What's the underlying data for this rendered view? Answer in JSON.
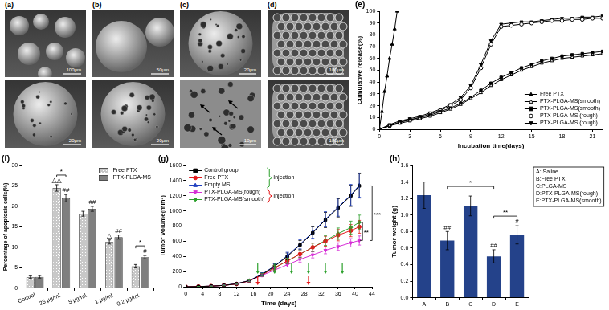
{
  "images": [
    {
      "label": "(a)",
      "scale_bars": [
        "100μm",
        "20μm"
      ]
    },
    {
      "label": "(b)",
      "scale_bars": [
        "50μm",
        "20μm"
      ]
    },
    {
      "label": "(c)",
      "scale_bars": [
        "20μm",
        "10μm"
      ]
    },
    {
      "label": "(d)",
      "scale_bars": [
        "100μm",
        "100μm"
      ]
    }
  ],
  "chart_data": [
    {
      "type": "line",
      "title": "(e)",
      "x_label": "Incubation time(days)",
      "y_label": "Cumulative release(%)",
      "xlim": [
        0,
        22
      ],
      "xticks": [
        0,
        3,
        6,
        9,
        12,
        15,
        18,
        21
      ],
      "ylim": [
        0,
        100
      ],
      "yticks": [
        0,
        10,
        20,
        30,
        40,
        50,
        60,
        70,
        80,
        90,
        100
      ],
      "grid": false,
      "legend": "lower right",
      "series": [
        {
          "name": "Free PTX",
          "color": "#000000",
          "marker": "triangle",
          "line_style": "solid",
          "x": [
            0,
            0.25,
            0.5,
            0.75,
            1,
            1.25,
            1.5,
            1.75
          ],
          "values": [
            0,
            15,
            32,
            45,
            60,
            72,
            85,
            100
          ]
        },
        {
          "name": "PTX-PLGA-MS(smooth)",
          "color": "#000000",
          "marker": "open_triangle",
          "line_style": "solid",
          "x": [
            0,
            1,
            2,
            3,
            4,
            5,
            6,
            7,
            8,
            9,
            10,
            11,
            12,
            13,
            14,
            15,
            16,
            17,
            18,
            19,
            20,
            21,
            22
          ],
          "values": [
            0,
            3,
            5,
            7,
            9,
            11,
            14,
            17,
            21,
            26,
            31,
            37,
            42,
            46,
            50,
            53,
            56,
            58,
            60,
            61,
            62,
            63,
            64
          ]
        },
        {
          "name": "PTX-PLGA-MS(smooth)",
          "color": "#000000",
          "marker": "square",
          "line_style": "solid",
          "x": [
            0,
            1,
            2,
            3,
            4,
            5,
            6,
            7,
            8,
            9,
            10,
            11,
            12,
            13,
            14,
            15,
            16,
            17,
            18,
            19,
            20,
            21,
            22
          ],
          "values": [
            0,
            3,
            6,
            8,
            10,
            12,
            15,
            18,
            22,
            27,
            33,
            39,
            44,
            48,
            52,
            55,
            58,
            60,
            62,
            63,
            64,
            65,
            66
          ]
        },
        {
          "name": "PTX-PLGA-MS (rough)",
          "color": "#000000",
          "marker": "open_circle",
          "line_style": "solid",
          "x": [
            0,
            1,
            2,
            3,
            4,
            5,
            6,
            7,
            8,
            9,
            10,
            11,
            12,
            13,
            14,
            15,
            16,
            17,
            18,
            19,
            20,
            21,
            22
          ],
          "values": [
            0,
            3,
            6,
            8,
            10,
            13,
            16,
            20,
            25,
            35,
            52,
            72,
            87,
            88,
            89,
            90,
            91,
            92,
            92,
            93,
            93,
            94,
            94
          ]
        },
        {
          "name": "PTX-PLGA-MS (rough)",
          "color": "#000000",
          "marker": "triangle_down",
          "line_style": "solid",
          "x": [
            0,
            1,
            2,
            3,
            4,
            5,
            6,
            7,
            8,
            9,
            10,
            11,
            12,
            13,
            14,
            15,
            16,
            17,
            18,
            19,
            20,
            21,
            22
          ],
          "values": [
            0,
            4,
            7,
            9,
            11,
            14,
            17,
            21,
            27,
            37,
            55,
            75,
            89,
            90,
            91,
            91,
            92,
            93,
            94,
            94,
            95,
            95,
            96
          ]
        }
      ]
    },
    {
      "type": "bar",
      "title": "(f)",
      "y_label": "Percentage of apoptosis cells(%)",
      "categories": [
        "Control",
        "25 μg/mL",
        "5 μg/mL",
        "1 μg/mL",
        "0.2 μg/mL"
      ],
      "ylim": [
        0,
        30
      ],
      "yticks": [
        0,
        5,
        10,
        15,
        20,
        25,
        30
      ],
      "grid": false,
      "legend": "upper right",
      "series": [
        {
          "name": "Free PTX",
          "color": "#c8c8c8",
          "values": [
            2.7,
            24.5,
            18.2,
            11.3,
            5.4
          ],
          "errors": [
            0.3,
            0.8,
            0.6,
            0.5,
            0.4
          ]
        },
        {
          "name": "PTX-PLGA-MS",
          "color": "#7f7f7f",
          "values": [
            2.8,
            22,
            19.4,
            12.5,
            7.6
          ],
          "errors": [
            0.3,
            0.9,
            0.6,
            0.5,
            0.4
          ]
        }
      ],
      "annotations": [
        {
          "text": "△△",
          "category": "25 μg/mL",
          "series": "Free PTX"
        },
        {
          "text": "##",
          "category": "25 μg/mL",
          "series": "PTX-PLGA-MS"
        },
        {
          "text": "##",
          "category": "5 μg/mL",
          "series": "PTX-PLGA-MS"
        },
        {
          "text": "△",
          "category": "1 μg/mL",
          "series": "Free PTX"
        },
        {
          "text": "##",
          "category": "1 μg/mL",
          "series": "PTX-PLGA-MS"
        },
        {
          "text": "#",
          "category": "0.2 μg/mL",
          "series": "PTX-PLGA-MS"
        },
        {
          "text": "*",
          "category": "25 μg/mL",
          "series": [
            "Free PTX",
            "PTX-PLGA-MS"
          ]
        },
        {
          "text": "*",
          "category": "0.2 μg/mL",
          "series": [
            "Free PTX",
            "PTX-PLGA-MS"
          ]
        }
      ]
    },
    {
      "type": "line",
      "title": "(g)",
      "x_label": "Time (days)",
      "y_label": "Tumor volume(mm³)",
      "xlim": [
        0,
        44
      ],
      "xticks": [
        0,
        4,
        8,
        12,
        16,
        20,
        24,
        28,
        32,
        36,
        40,
        44
      ],
      "ylim": [
        0,
        1600
      ],
      "yticks": [
        0,
        200,
        400,
        600,
        800,
        1000,
        1200,
        1400,
        1600
      ],
      "grid": false,
      "legend": "upper left",
      "x": [
        0,
        3,
        6,
        9,
        12,
        15,
        18,
        21,
        24,
        27,
        30,
        33,
        36,
        39,
        41
      ],
      "series": [
        {
          "name": "Control group",
          "color": "#000000",
          "marker": "square",
          "line_style": "solid",
          "values": [
            0,
            3,
            8,
            18,
            38,
            80,
            160,
            270,
            400,
            550,
            710,
            880,
            1040,
            1200,
            1330
          ],
          "errors": [
            0,
            1,
            2,
            4,
            6,
            12,
            20,
            30,
            45,
            60,
            80,
            100,
            120,
            140,
            160
          ]
        },
        {
          "name": "Free PTX",
          "color": "#e41a1c",
          "marker": "circle",
          "line_style": "solid",
          "values": [
            0,
            3,
            8,
            18,
            36,
            78,
            155,
            250,
            340,
            430,
            520,
            600,
            680,
            740,
            790
          ],
          "errors": [
            0,
            1,
            2,
            4,
            6,
            12,
            20,
            28,
            35,
            45,
            55,
            65,
            75,
            80,
            85
          ]
        },
        {
          "name": "Empty MS",
          "color": "#1f3fbf",
          "marker": "triangle",
          "line_style": "solid",
          "values": [
            0,
            3,
            8,
            19,
            40,
            82,
            165,
            275,
            410,
            560,
            720,
            890,
            1050,
            1210,
            1340
          ],
          "errors": [
            0,
            1,
            2,
            4,
            6,
            12,
            20,
            30,
            45,
            60,
            80,
            100,
            120,
            140,
            160
          ]
        },
        {
          "name": "PTX-PLGA-MS(rough)",
          "color": "#d62ed6",
          "marker": "triangle_down",
          "line_style": "solid",
          "values": [
            0,
            3,
            8,
            18,
            36,
            76,
            150,
            220,
            290,
            360,
            420,
            480,
            530,
            580,
            610
          ],
          "errors": [
            0,
            1,
            2,
            4,
            6,
            12,
            18,
            25,
            30,
            35,
            40,
            45,
            50,
            55,
            60
          ]
        },
        {
          "name": "PTX-PLGA-MS(smooth)",
          "color": "#2ca02c",
          "marker": "diamond",
          "line_style": "solid",
          "values": [
            0,
            3,
            8,
            18,
            37,
            78,
            158,
            250,
            340,
            430,
            520,
            610,
            700,
            780,
            850
          ],
          "errors": [
            0,
            1,
            2,
            4,
            6,
            12,
            20,
            28,
            35,
            45,
            55,
            65,
            75,
            85,
            95
          ]
        }
      ],
      "injections": [
        {
          "text": "Injection",
          "color": "#2ca02c",
          "series": [
            "Control group",
            "Free PTX",
            "Empty MS"
          ],
          "days": [
            17,
            21,
            25,
            29,
            33,
            37
          ]
        },
        {
          "text": "Injection",
          "color": "#e41a1c",
          "series": [
            "PTX-PLGA-MS(rough)",
            "PTX-PLGA-MS(smooth)"
          ],
          "days": [
            17,
            29
          ]
        }
      ],
      "annotations": [
        {
          "text": "**",
          "series": [
            "PTX-PLGA-MS(smooth)",
            "PTX-PLGA-MS(rough)"
          ]
        },
        {
          "text": "***",
          "series": [
            "Control group",
            "PTX-PLGA-MS(rough)"
          ]
        }
      ]
    },
    {
      "type": "bar",
      "title": "(h)",
      "y_label": "Tumor weight (g)",
      "categories": [
        "A",
        "B",
        "C",
        "D",
        "E"
      ],
      "values": [
        1.24,
        0.69,
        1.11,
        0.5,
        0.76
      ],
      "errors": [
        0.16,
        0.11,
        0.12,
        0.08,
        0.11
      ],
      "color": "#24428a",
      "ylim": [
        0,
        1.6
      ],
      "yticks": [
        {
          "value": 0,
          "label": "0.0"
        },
        0.2,
        0.4,
        0.6,
        0.8,
        {
          "value": 1,
          "label": "1.0"
        },
        1.2,
        1.4,
        1.6
      ],
      "grid": false,
      "key": [
        "A: Saline",
        "B:Free PTX",
        "C:PLGA-MS",
        "D:PTX-PLGA-MS(rough)",
        "E:PTX-PLGA-MS(smooth)"
      ],
      "annotations": [
        {
          "text": "##",
          "category": "B"
        },
        {
          "text": "##",
          "category": "D"
        },
        {
          "text": "#",
          "category": "E"
        },
        {
          "text": "*",
          "categories": [
            "B",
            "D"
          ]
        },
        {
          "text": "**",
          "categories": [
            "D",
            "E"
          ]
        }
      ]
    }
  ]
}
